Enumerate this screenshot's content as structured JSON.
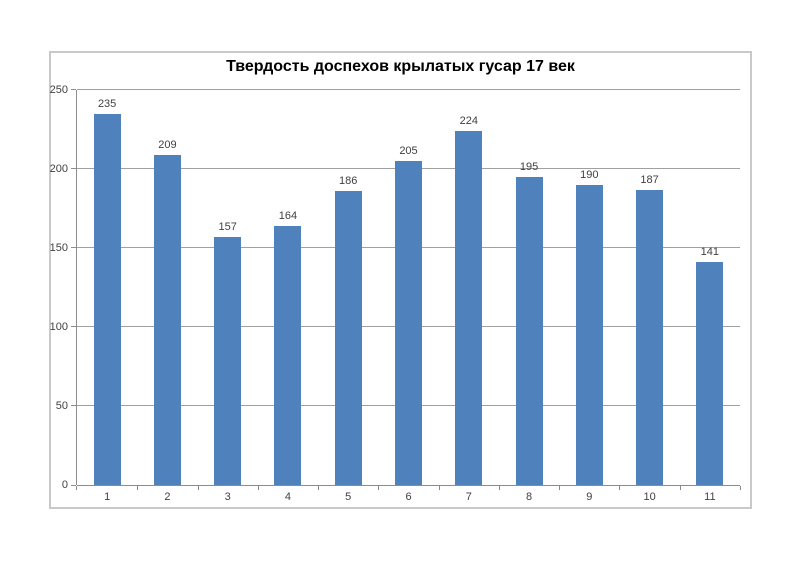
{
  "chart_data": {
    "type": "bar",
    "title": "Твердость доспехов крылатых гусар 17 век",
    "categories": [
      "1",
      "2",
      "3",
      "4",
      "5",
      "6",
      "7",
      "8",
      "9",
      "10",
      "11"
    ],
    "values": [
      235,
      209,
      157,
      164,
      186,
      205,
      224,
      195,
      190,
      187,
      141
    ],
    "xlabel": "",
    "ylabel": "",
    "ylim": [
      0,
      250
    ],
    "yticks": [
      0,
      50,
      100,
      150,
      200,
      250
    ],
    "grid": true,
    "legend": false,
    "data_labels": true,
    "colors": {
      "bar_fill": "#4F81BD",
      "gridline": "#A0A0A0",
      "axis_line": "#8C8C8C",
      "tick_text": "#404040",
      "title_text": "#000000",
      "frame_border": "#C9C9C9",
      "background": "#FFFFFF"
    }
  }
}
